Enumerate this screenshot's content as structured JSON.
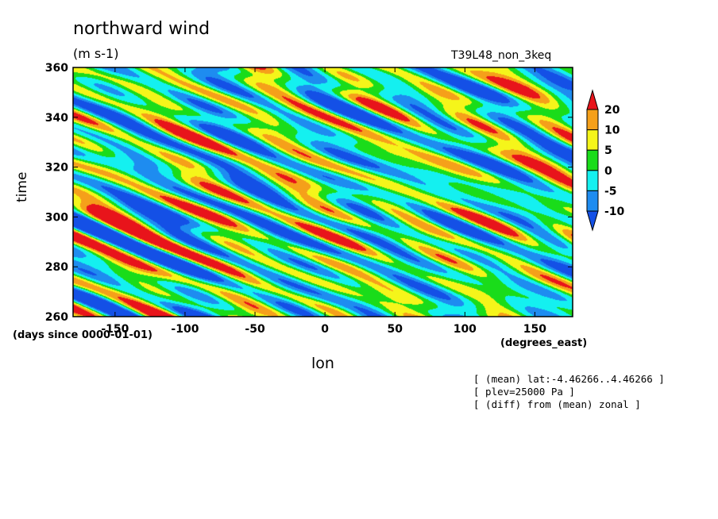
{
  "chart_data": {
    "type": "heatmap",
    "title": "northward wind",
    "units": "(m s-1)",
    "run_label": "T39L48_non_3keq",
    "xlabel": "lon",
    "x_units": "(degrees_east)",
    "ylabel": "time",
    "y_units": "(days since 0000-01-01)",
    "xlim": [
      -180,
      177
    ],
    "ylim": [
      260,
      360
    ],
    "x_ticks": [
      "-150",
      "-100",
      "-50",
      "0",
      "50",
      "100",
      "150"
    ],
    "y_ticks": [
      "260",
      "280",
      "300",
      "320",
      "340",
      "360"
    ],
    "colorbar": {
      "levels": [
        "20",
        "10",
        "5",
        "0",
        "-5",
        "-10"
      ],
      "colors": [
        "#e8141b",
        "#f5a01a",
        "#f5f51a",
        "#1adc1a",
        "#14f0f0",
        "#1e8cf0",
        "#1450e6"
      ]
    },
    "annotations": [
      "[ (mean) lat:-4.46266..4.46266 ]",
      "[ plev=25000 Pa ]",
      "[ (diff) from (mean) zonal ]"
    ]
  }
}
